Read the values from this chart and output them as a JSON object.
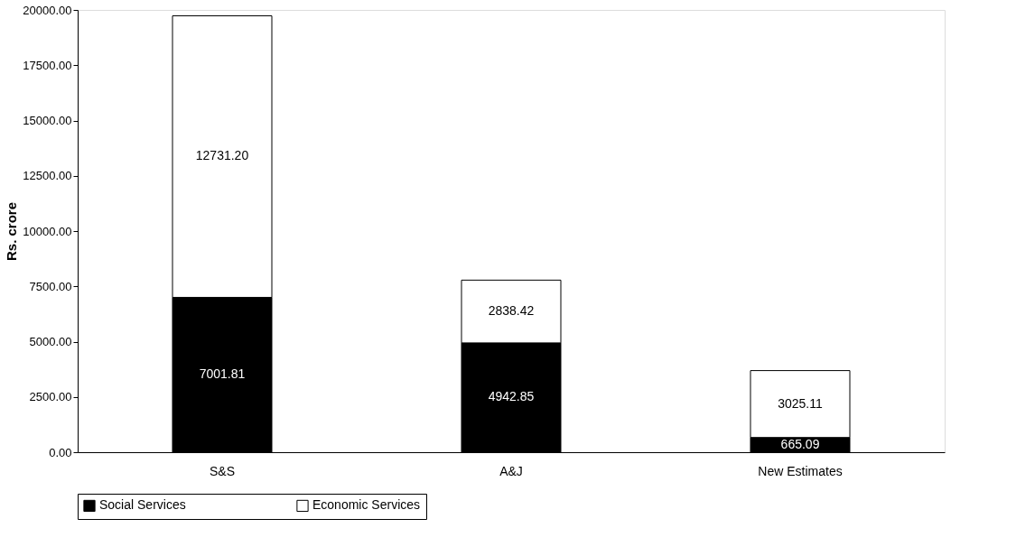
{
  "chart_data": {
    "type": "bar",
    "stacked": true,
    "ylabel": "Rs. crore",
    "categories": [
      "S&S",
      "A&J",
      "New Estimates"
    ],
    "series": [
      {
        "name": "Social Services",
        "color": "#000000",
        "values": [
          7001.81,
          4942.85,
          665.09
        ]
      },
      {
        "name": "Economic Services",
        "color": "#ffffff",
        "values": [
          12731.2,
          2838.42,
          3025.11
        ]
      }
    ],
    "ylim": [
      0,
      20000
    ],
    "yticks": [
      {
        "value": 0,
        "label": "0.00"
      },
      {
        "value": 2500,
        "label": "2500.00"
      },
      {
        "value": 5000,
        "label": "5000.00"
      },
      {
        "value": 7500,
        "label": "7500.00"
      },
      {
        "value": 10000,
        "label": "10000.00"
      },
      {
        "value": 12500,
        "label": "12500.00"
      },
      {
        "value": 15000,
        "label": "15000.00"
      },
      {
        "value": 17500,
        "label": "17500.00"
      },
      {
        "value": 20000,
        "label": "20000.00"
      }
    ],
    "value_labels": [
      [
        "7001.81",
        "4942.85",
        "665.09"
      ],
      [
        "12731.20",
        "2838.42",
        "3025.11"
      ]
    ],
    "legend": "bottom",
    "grid": false
  }
}
